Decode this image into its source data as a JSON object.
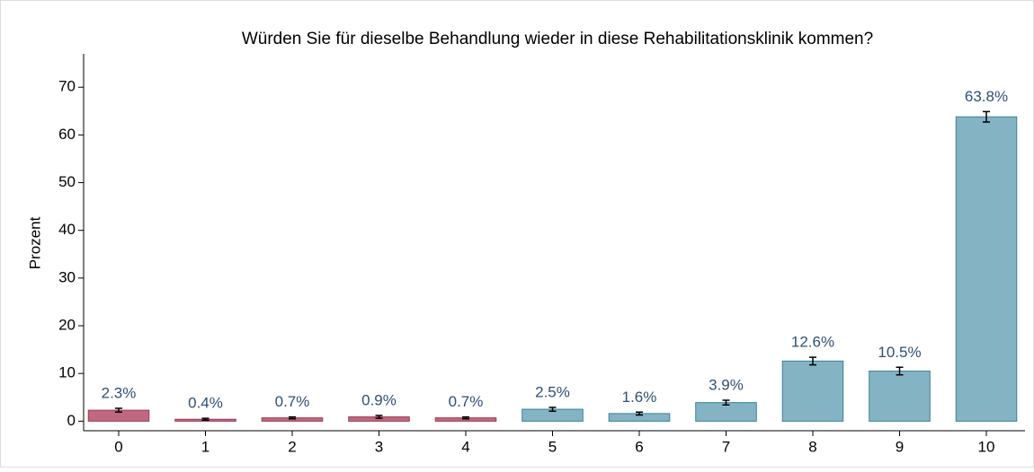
{
  "chart_data": {
    "type": "bar",
    "title": "Würden Sie für dieselbe Behandlung wieder in diese Rehabilitationsklinik kommen?",
    "y_label": "Prozent",
    "categories": [
      "0",
      "1",
      "2",
      "3",
      "4",
      "5",
      "6",
      "7",
      "8",
      "9",
      "10"
    ],
    "values": [
      2.3,
      0.4,
      0.7,
      0.9,
      0.7,
      2.5,
      1.6,
      3.9,
      12.6,
      10.5,
      63.8
    ],
    "value_labels": [
      "2.3%",
      "0.4%",
      "0.7%",
      "0.9%",
      "0.7%",
      "2.5%",
      "1.6%",
      "3.9%",
      "12.6%",
      "10.5%",
      "63.8%"
    ],
    "errors": [
      0.4,
      0.2,
      0.2,
      0.3,
      0.2,
      0.4,
      0.3,
      0.5,
      0.8,
      0.8,
      1.1
    ],
    "colors": [
      "#c0687f",
      "#c0687f",
      "#c0687f",
      "#c0687f",
      "#c0687f",
      "#84b4c4",
      "#84b4c4",
      "#84b4c4",
      "#84b4c4",
      "#84b4c4",
      "#84b4c4"
    ],
    "ylim": [
      -2,
      77
    ],
    "yticks": [
      0,
      10,
      20,
      30,
      40,
      50,
      60,
      70
    ]
  }
}
